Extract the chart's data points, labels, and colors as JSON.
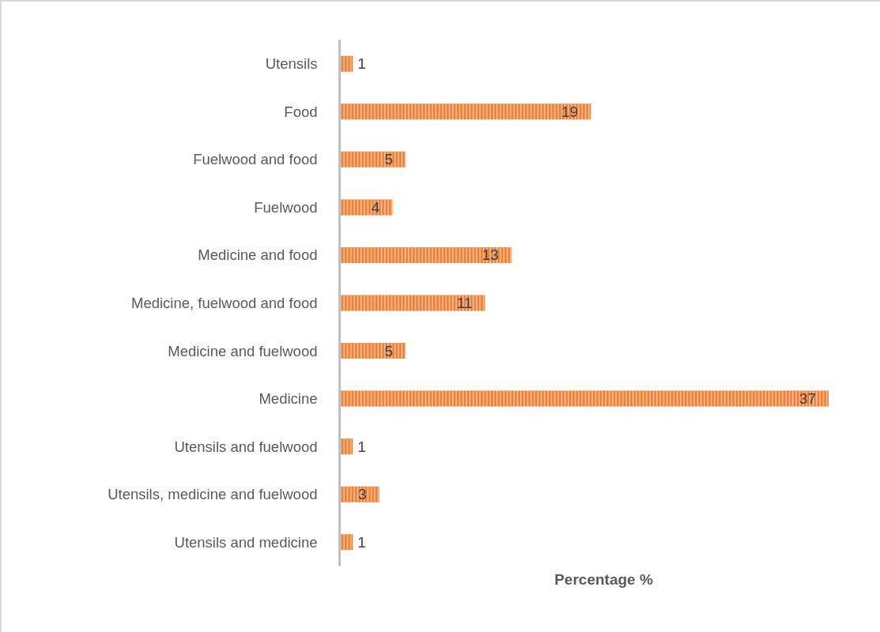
{
  "chart_data": {
    "type": "bar",
    "orientation": "horizontal",
    "categories": [
      "Utensils",
      "Food",
      "Fuelwood and food",
      "Fuelwood",
      "Medicine and food",
      "Medicine, fuelwood and food",
      "Medicine and fuelwood",
      "Medicine",
      "Utensils and fuelwood",
      "Utensils, medicine and fuelwood",
      "Utensils and medicine"
    ],
    "values": [
      1,
      19,
      5,
      4,
      13,
      11,
      5,
      37,
      1,
      3,
      1
    ],
    "color": "#ed7d31",
    "xlabel": "Percentage %",
    "data_labels": true,
    "tick_labels": "y"
  }
}
